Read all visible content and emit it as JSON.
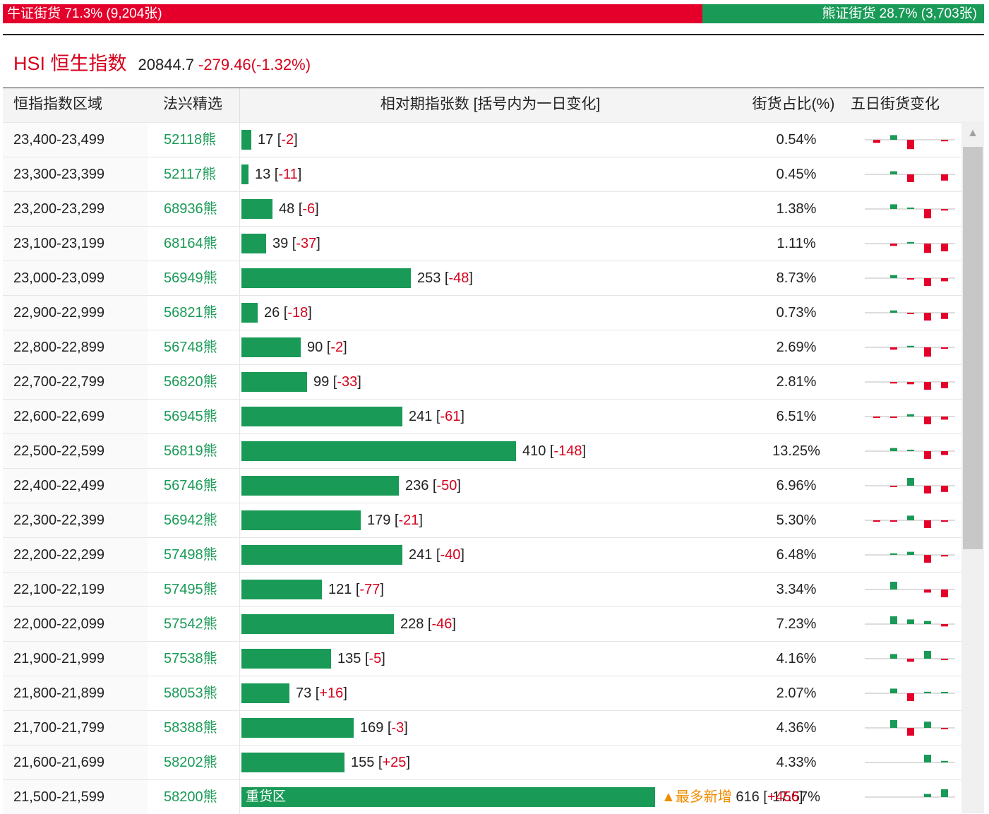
{
  "ratio": {
    "bull_label": "牛证街货 71.3% (9,204张)",
    "bull_fraction": 0.713,
    "bear_label": "熊证街货 28.7% (3,703张)"
  },
  "index": {
    "name": "HSI 恒生指数",
    "value": "20844.7",
    "change": "-279.46(-1.32%)"
  },
  "table": {
    "headers": {
      "range": "恒指指数区域",
      "pick": "法兴精选",
      "bars": "相对期指张数 [括号内为一日变化]",
      "share": "街货占比(%)",
      "trend": "五日街货变化"
    },
    "max_contracts": 616,
    "hot_zone_label": "重货区",
    "hot_add_label": "▲最多新增",
    "rows": [
      {
        "range": "23,400-23,499",
        "pick": "52118熊",
        "contracts": "17",
        "delta": "-2",
        "share": "0.54%",
        "trend": [
          -2,
          3,
          -6,
          0,
          -1
        ]
      },
      {
        "range": "23,300-23,399",
        "pick": "52117熊",
        "contracts": "13",
        "delta": "-11",
        "share": "0.45%",
        "trend": [
          0,
          2,
          -5,
          0,
          -4
        ]
      },
      {
        "range": "23,200-23,299",
        "pick": "68936熊",
        "contracts": "48",
        "delta": "-6",
        "share": "1.38%",
        "trend": [
          0,
          3,
          0.5,
          -6,
          -1
        ]
      },
      {
        "range": "23,100-23,199",
        "pick": "68164熊",
        "contracts": "39",
        "delta": "-37",
        "share": "1.11%",
        "trend": [
          0,
          -1.5,
          1,
          -6,
          -5
        ]
      },
      {
        "range": "23,000-23,099",
        "pick": "56949熊",
        "contracts": "253",
        "delta": "-48",
        "share": "8.73%",
        "trend": [
          0,
          2,
          -0.5,
          -5,
          -2
        ]
      },
      {
        "range": "22,900-22,999",
        "pick": "56821熊",
        "contracts": "26",
        "delta": "-18",
        "share": "0.73%",
        "trend": [
          0,
          1.5,
          -0.5,
          -5,
          -4
        ]
      },
      {
        "range": "22,800-22,899",
        "pick": "56748熊",
        "contracts": "90",
        "delta": "-2",
        "share": "2.69%",
        "trend": [
          0,
          -1.5,
          1,
          -6,
          -0.3
        ]
      },
      {
        "range": "22,700-22,799",
        "pick": "56820熊",
        "contracts": "99",
        "delta": "-33",
        "share": "2.81%",
        "trend": [
          0,
          -1,
          -1.5,
          -5,
          -4
        ]
      },
      {
        "range": "22,600-22,699",
        "pick": "56945熊",
        "contracts": "241",
        "delta": "-61",
        "share": "6.51%",
        "trend": [
          -0.5,
          -0.5,
          1.5,
          -5,
          -2
        ]
      },
      {
        "range": "22,500-22,599",
        "pick": "56819熊",
        "contracts": "410",
        "delta": "-148",
        "share": "13.25%",
        "trend": [
          0,
          2,
          0.5,
          -5,
          -2.5
        ]
      },
      {
        "range": "22,400-22,499",
        "pick": "56746熊",
        "contracts": "236",
        "delta": "-50",
        "share": "6.96%",
        "trend": [
          0,
          -0.5,
          5,
          -5,
          -4
        ]
      },
      {
        "range": "22,300-22,399",
        "pick": "56942熊",
        "contracts": "179",
        "delta": "-21",
        "share": "5.30%",
        "trend": [
          -0.5,
          -0.5,
          3,
          -5,
          -0.3
        ]
      },
      {
        "range": "22,200-22,299",
        "pick": "57498熊",
        "contracts": "241",
        "delta": "-40",
        "share": "6.48%",
        "trend": [
          0,
          1,
          2,
          -5,
          -1
        ]
      },
      {
        "range": "22,100-22,199",
        "pick": "57495熊",
        "contracts": "121",
        "delta": "-77",
        "share": "3.34%",
        "trend": [
          0,
          5,
          0,
          -2,
          -5
        ]
      },
      {
        "range": "22,000-22,099",
        "pick": "57542熊",
        "contracts": "228",
        "delta": "-46",
        "share": "7.23%",
        "trend": [
          0,
          5,
          3,
          2,
          -1.5
        ]
      },
      {
        "range": "21,900-21,999",
        "pick": "57538熊",
        "contracts": "135",
        "delta": "-5",
        "share": "4.16%",
        "trend": [
          0,
          3,
          -2,
          5,
          -0.3
        ]
      },
      {
        "range": "21,800-21,899",
        "pick": "58053熊",
        "contracts": "73",
        "delta": "+16",
        "share": "2.07%",
        "trend": [
          0,
          3,
          -5,
          1,
          0.3
        ]
      },
      {
        "range": "21,700-21,799",
        "pick": "58388熊",
        "contracts": "169",
        "delta": "-3",
        "share": "4.36%",
        "trend": [
          0,
          5,
          -5,
          4,
          -0.3
        ]
      },
      {
        "range": "21,600-21,699",
        "pick": "58202熊",
        "contracts": "155",
        "delta": "+25",
        "share": "4.33%",
        "trend": [
          0,
          0,
          0,
          5,
          1
        ]
      },
      {
        "range": "21,500-21,599",
        "pick": "58200熊",
        "contracts": "616",
        "delta": "+456",
        "share": "17.57%",
        "trend": [
          0,
          0,
          0,
          2,
          5
        ],
        "hot": true
      }
    ]
  },
  "colors": {
    "bull": "#e4002b",
    "bear": "#1a9a57",
    "up": "#1a9a57",
    "down": "#e4002b",
    "accent_text": "#d6001c",
    "hot_text": "#f08c00"
  },
  "icons": {
    "scroll_up": "triangle-up-icon"
  }
}
